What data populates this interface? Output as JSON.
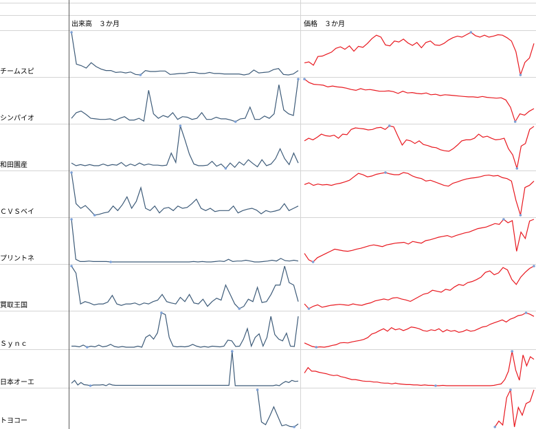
{
  "headers": {
    "volume": "出来高　３か月",
    "price": "価格　３か月"
  },
  "colors": {
    "volume_line": "#3c5a78",
    "price_line": "#e8171e",
    "marker": "#7b9fd6"
  },
  "rows": [
    {
      "name": "チームスピ",
      "volume": [
        95,
        30,
        27,
        22,
        33,
        25,
        20,
        17,
        17,
        13,
        14,
        12,
        14,
        9,
        8,
        17,
        15,
        15,
        16,
        16,
        9,
        10,
        11,
        11,
        13,
        13,
        11,
        11,
        13,
        11,
        11,
        10,
        10,
        10,
        10,
        8,
        10,
        18,
        12,
        13,
        14,
        19,
        21,
        9,
        8,
        10,
        17
      ],
      "price": [
        35,
        37,
        30,
        48,
        49,
        53,
        57,
        65,
        68,
        63,
        70,
        59,
        69,
        67,
        75,
        85,
        92,
        88,
        72,
        70,
        80,
        78,
        84,
        76,
        71,
        77,
        66,
        77,
        80,
        72,
        71,
        75,
        82,
        87,
        90,
        88,
        93,
        98,
        91,
        88,
        92,
        88,
        90,
        93,
        92,
        87,
        80,
        58,
        10,
        36,
        45,
        75
      ]
    },
    {
      "name": "シンパイオ",
      "volume": [
        10,
        20,
        23,
        17,
        10,
        9,
        8,
        8,
        9,
        6,
        10,
        13,
        7,
        7,
        10,
        5,
        60,
        18,
        10,
        15,
        12,
        20,
        8,
        13,
        12,
        8,
        10,
        20,
        8,
        8,
        12,
        9,
        9,
        7,
        4,
        9,
        10,
        30,
        8,
        8,
        14,
        10,
        18,
        70,
        25,
        18,
        15,
        80
      ],
      "price": [
        98,
        90,
        86,
        85,
        84,
        80,
        82,
        80,
        79,
        77,
        74,
        72,
        76,
        73,
        74,
        72,
        70,
        70,
        71,
        69,
        65,
        70,
        66,
        67,
        65,
        64,
        66,
        62,
        63,
        60,
        62,
        61,
        60,
        59,
        58,
        57,
        57,
        56,
        58,
        56,
        55,
        54,
        55,
        50,
        33,
        0,
        18,
        15,
        24,
        30
      ]
    },
    {
      "name": "和田園産",
      "volume": [
        12,
        7,
        9,
        7,
        9,
        7,
        7,
        10,
        7,
        9,
        8,
        13,
        6,
        10,
        7,
        12,
        8,
        10,
        8,
        8,
        7,
        8,
        30,
        13,
        80,
        55,
        28,
        10,
        7,
        7,
        8,
        15,
        6,
        10,
        2,
        12,
        4,
        14,
        8,
        18,
        11,
        5,
        18,
        7,
        10,
        20,
        38,
        20,
        9,
        30,
        12
      ],
      "price": [
        65,
        70,
        67,
        72,
        78,
        75,
        74,
        76,
        70,
        78,
        77,
        87,
        90,
        89,
        88,
        86,
        87,
        90,
        91,
        87,
        94,
        92,
        74,
        57,
        67,
        65,
        60,
        65,
        58,
        56,
        53,
        52,
        48,
        46,
        45,
        50,
        57,
        65,
        67,
        67,
        70,
        78,
        72,
        74,
        70,
        67,
        68,
        70,
        50,
        38,
        12,
        55,
        60,
        87,
        93
      ]
    },
    {
      "name": "ＣＶＳベイ",
      "volume": [
        98,
        30,
        20,
        26,
        16,
        5,
        7,
        10,
        12,
        25,
        15,
        28,
        45,
        20,
        35,
        65,
        20,
        15,
        25,
        10,
        20,
        22,
        15,
        25,
        20,
        22,
        30,
        40,
        20,
        15,
        20,
        13,
        15,
        15,
        15,
        25,
        10,
        15,
        18,
        20,
        16,
        8,
        15,
        12,
        14,
        17,
        30,
        15,
        20,
        25
      ],
      "price": [
        72,
        76,
        70,
        73,
        71,
        72,
        70,
        73,
        75,
        78,
        82,
        90,
        98,
        95,
        90,
        92,
        96,
        98,
        100,
        97,
        95,
        95,
        100,
        98,
        92,
        88,
        86,
        80,
        82,
        78,
        74,
        70,
        68,
        75,
        78,
        82,
        85,
        87,
        88,
        90,
        93,
        94,
        92,
        93,
        88,
        86,
        80,
        35,
        0,
        65,
        70,
        80
      ]
    },
    {
      "name": "プリントネ",
      "volume": [
        100,
        8,
        3,
        3,
        4,
        3,
        3,
        3,
        3,
        2,
        2,
        2,
        2,
        2,
        2,
        2,
        2,
        2,
        2,
        2,
        2,
        2,
        2,
        2,
        2,
        2,
        2,
        2,
        3,
        2,
        3,
        2,
        2,
        3,
        4,
        3,
        8,
        3,
        4,
        4,
        6,
        4,
        2,
        2,
        3,
        4,
        6,
        4,
        10,
        5,
        4,
        6,
        4
      ],
      "price": [
        20,
        5,
        0,
        10,
        15,
        20,
        25,
        30,
        28,
        26,
        25,
        27,
        30,
        32,
        35,
        38,
        40,
        38,
        36,
        40,
        42,
        44,
        45,
        46,
        42,
        48,
        46,
        44,
        50,
        52,
        55,
        58,
        60,
        62,
        58,
        62,
        65,
        68,
        70,
        74,
        78,
        80,
        82,
        86,
        90,
        88,
        100,
        92,
        97,
        25,
        70,
        55,
        96,
        100
      ]
    },
    {
      "name": "買取王国",
      "volume": [
        100,
        85,
        20,
        25,
        22,
        18,
        20,
        20,
        24,
        38,
        20,
        17,
        20,
        20,
        22,
        18,
        22,
        20,
        25,
        28,
        40,
        25,
        22,
        20,
        34,
        25,
        40,
        22,
        20,
        30,
        15,
        25,
        32,
        28,
        60,
        40,
        20,
        10,
        15,
        30,
        25,
        55,
        23,
        25,
        40,
        60,
        60,
        100,
        65,
        60,
        25
      ],
      "price": [
        20,
        10,
        15,
        18,
        13,
        15,
        17,
        18,
        19,
        18,
        17,
        20,
        18,
        17,
        20,
        22,
        26,
        28,
        30,
        28,
        32,
        33,
        30,
        28,
        25,
        30,
        35,
        40,
        42,
        48,
        46,
        44,
        50,
        48,
        55,
        60,
        58,
        64,
        66,
        70,
        75,
        85,
        88,
        80,
        84,
        95,
        90,
        70,
        60,
        75,
        85,
        93,
        98
      ]
    },
    {
      "name": "Ｓｙｎｃ",
      "volume": [
        5,
        5,
        3,
        8,
        2,
        5,
        3,
        8,
        3,
        5,
        10,
        4,
        2,
        4,
        2,
        2,
        2,
        5,
        2,
        30,
        37,
        25,
        43,
        100,
        95,
        30,
        5,
        3,
        4,
        3,
        5,
        10,
        5,
        2,
        4,
        2,
        5,
        4,
        3,
        5,
        22,
        20,
        4,
        5,
        25,
        55,
        5,
        30,
        40,
        5,
        30,
        90,
        38,
        25,
        20,
        42,
        5,
        4,
        90
      ],
      "price": [
        15,
        10,
        5,
        3,
        4,
        3,
        5,
        8,
        10,
        15,
        16,
        15,
        18,
        20,
        22,
        25,
        30,
        40,
        44,
        50,
        55,
        48,
        58,
        52,
        55,
        50,
        54,
        60,
        58,
        55,
        50,
        48,
        52,
        50,
        55,
        46,
        52,
        48,
        50,
        45,
        47,
        52,
        48,
        50,
        55,
        60,
        62,
        68,
        72,
        76,
        80,
        74,
        82,
        86,
        92,
        94,
        100,
        96,
        90
      ]
    },
    {
      "name": "日本オーエ",
      "volume": [
        10,
        18,
        5,
        12,
        6,
        5,
        3,
        5,
        5,
        5,
        6,
        3,
        8,
        5,
        4,
        4,
        4,
        4,
        4,
        4,
        4,
        4,
        4,
        4,
        4,
        4,
        4,
        4,
        4,
        4,
        4,
        4,
        4,
        4,
        4,
        4,
        4,
        4,
        4,
        4,
        4,
        4,
        4,
        4,
        4,
        4,
        4,
        4,
        4,
        4,
        4,
        100,
        3,
        3,
        3,
        3,
        3,
        3,
        3,
        3,
        3,
        3,
        3,
        3,
        3,
        5,
        3,
        10,
        15,
        12,
        18,
        15,
        16
      ],
      "price": [
        40,
        55,
        45,
        45,
        42,
        40,
        38,
        35,
        33,
        34,
        30,
        28,
        25,
        22,
        22,
        20,
        18,
        17,
        17,
        15,
        15,
        13,
        12,
        12,
        10,
        12,
        10,
        9,
        8,
        8,
        7,
        7,
        6,
        7,
        6,
        6,
        5,
        5,
        6,
        5,
        5,
        5,
        5,
        5,
        5,
        5,
        5,
        5,
        5,
        5,
        5,
        5,
        6,
        8,
        10,
        22,
        45,
        100,
        48,
        20,
        90,
        60,
        85,
        78
      ]
    },
    {
      "name": "トヨコー",
      "volume": [
        100,
        15,
        8,
        30,
        55,
        30,
        5,
        8,
        3,
        2,
        10
      ],
      "price": [
        5,
        20,
        10,
        80,
        100,
        5,
        55,
        35,
        65,
        70,
        100
      ]
    }
  ]
}
